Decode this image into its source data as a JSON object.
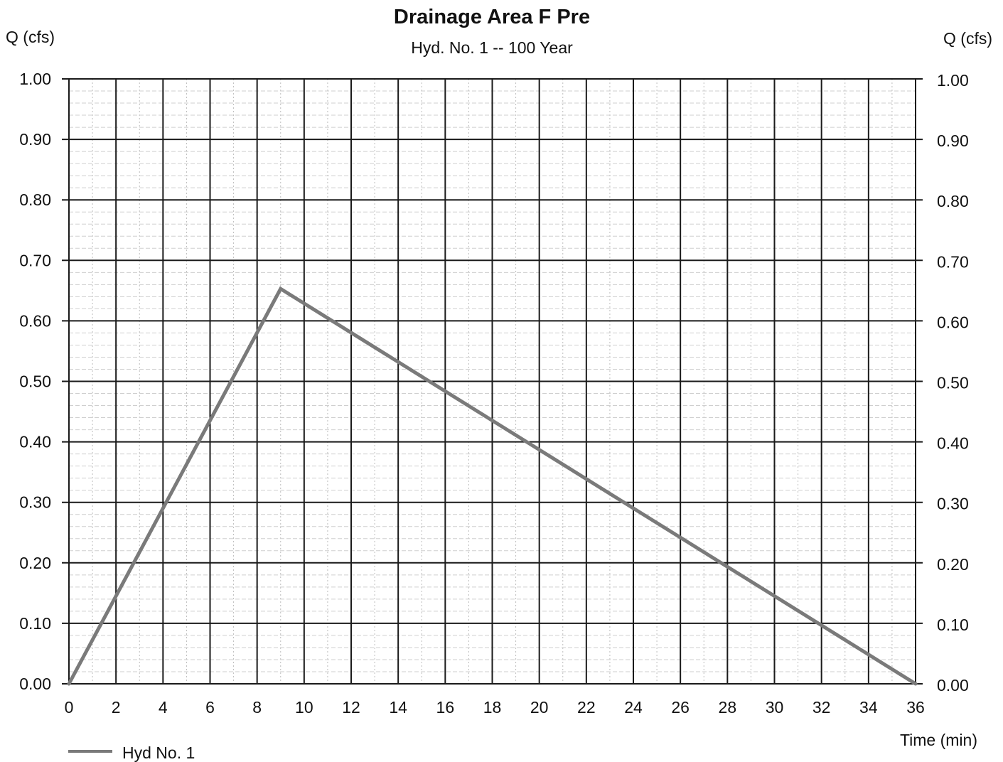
{
  "chart_data": {
    "type": "line",
    "title": "Drainage Area F Pre",
    "subtitle": "Hyd. No. 1 -- 100 Year",
    "ylabel_left": "Q (cfs)",
    "ylabel_right": "Q (cfs)",
    "xlabel": "Time (min)",
    "xlim": [
      0,
      36
    ],
    "ylim": [
      0,
      1.0
    ],
    "x_ticks": [
      "0",
      "2",
      "4",
      "6",
      "8",
      "10",
      "12",
      "14",
      "16",
      "18",
      "20",
      "22",
      "24",
      "26",
      "28",
      "30",
      "32",
      "34",
      "36"
    ],
    "y_ticks": [
      "0.00",
      "0.10",
      "0.20",
      "0.30",
      "0.40",
      "0.50",
      "0.60",
      "0.70",
      "0.80",
      "0.90",
      "1.00"
    ],
    "grid": true,
    "legend_position": "bottom-left",
    "series": [
      {
        "name": "Hyd No. 1",
        "color": "#7a7a7a",
        "x": [
          0,
          9,
          36
        ],
        "y": [
          0.0,
          0.653,
          0.0
        ]
      }
    ]
  }
}
